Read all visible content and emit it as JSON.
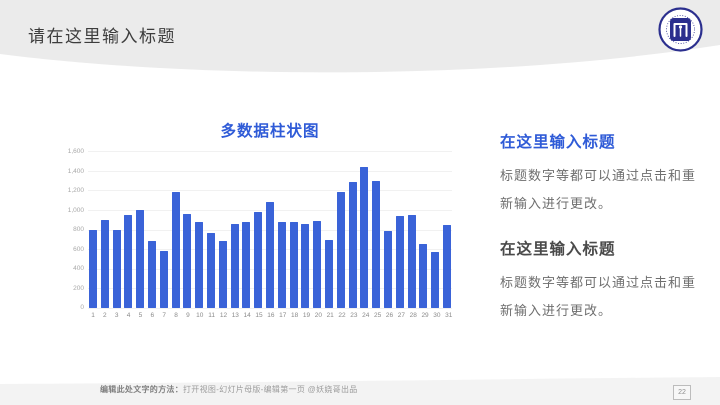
{
  "slide": {
    "title": "请在这里输入标题",
    "page_number": "22",
    "footer_bold": "编辑此处文字的方法：",
    "footer_rest": "打开视图-幻灯片母版-编辑第一页 @妖娆哥出品",
    "logo_name": "university-emblem"
  },
  "chart_data": {
    "type": "bar",
    "title": "多数据柱状图",
    "title_color": "#2f5bd7",
    "bar_color": "#3a63d8",
    "grid": true,
    "legend_position": "none",
    "xlabel": "",
    "ylabel": "",
    "ylim": [
      0,
      1600
    ],
    "yticks": [
      "1,600",
      "1,400",
      "1,200",
      "1,000",
      "800",
      "600",
      "400",
      "200",
      "0"
    ],
    "categories": [
      "1",
      "2",
      "3",
      "4",
      "5",
      "6",
      "7",
      "8",
      "9",
      "10",
      "11",
      "12",
      "13",
      "14",
      "15",
      "16",
      "17",
      "18",
      "19",
      "20",
      "21",
      "22",
      "23",
      "24",
      "25",
      "26",
      "27",
      "28",
      "29",
      "30",
      "31"
    ],
    "values": [
      800,
      900,
      800,
      950,
      1000,
      680,
      580,
      1180,
      960,
      880,
      760,
      680,
      860,
      880,
      980,
      1080,
      880,
      880,
      860,
      890,
      690,
      1180,
      1280,
      1440,
      1290,
      780,
      940,
      950,
      650,
      570,
      850
    ]
  },
  "sections": [
    {
      "heading": "在这里输入标题",
      "heading_color": "#2f5bd7",
      "body": "标题数字等都可以通过点击和重新输入进行更改。"
    },
    {
      "heading": "在这里输入标题",
      "heading_color": "#4a4a4a",
      "body": "标题数字等都可以通过点击和重新输入进行更改。"
    }
  ],
  "colors": {
    "header_band": "#ebebeb",
    "footer_band": "#f3f3f3",
    "slide_title": "#3d3d3d",
    "logo_navy": "#2b2f8e"
  }
}
